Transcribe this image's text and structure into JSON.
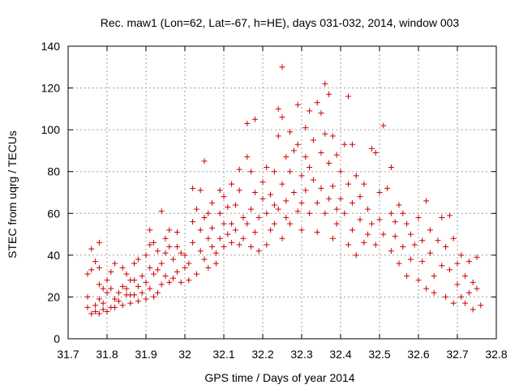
{
  "chart_data": {
    "type": "scatter",
    "title": "Rec. maw1 (Lon=62, Lat=-67, h=HE), days 031-032, 2014, window 003",
    "xlabel": "GPS time / Days of year 2014",
    "ylabel": "STEC from uqrg / TECUs",
    "xlim": [
      31.7,
      32.8
    ],
    "ylim": [
      0,
      140
    ],
    "x_ticks": [
      "31.7",
      "31.8",
      "31.9",
      "32",
      "32.1",
      "32.2",
      "32.3",
      "32.4",
      "32.5",
      "32.6",
      "32.7",
      "32.8"
    ],
    "y_ticks": [
      "0",
      "20",
      "40",
      "60",
      "80",
      "100",
      "120",
      "140"
    ],
    "grid": true,
    "marker": "plus",
    "color": "#cc0000",
    "series": [
      {
        "points": [
          [
            31.75,
            31
          ],
          [
            31.75,
            20
          ],
          [
            31.75,
            15
          ],
          [
            31.76,
            12
          ],
          [
            31.76,
            33
          ],
          [
            31.76,
            43
          ],
          [
            31.77,
            16
          ],
          [
            31.77,
            13
          ],
          [
            31.77,
            37
          ],
          [
            31.78,
            46
          ],
          [
            31.78,
            34
          ],
          [
            31.78,
            26
          ],
          [
            31.78,
            19
          ],
          [
            31.78,
            12
          ],
          [
            31.79,
            17
          ],
          [
            31.79,
            24
          ],
          [
            31.79,
            14
          ],
          [
            31.8,
            13
          ],
          [
            31.8,
            28
          ],
          [
            31.8,
            22
          ],
          [
            31.81,
            32
          ],
          [
            31.81,
            15
          ],
          [
            31.81,
            24
          ],
          [
            31.82,
            19
          ],
          [
            31.82,
            15
          ],
          [
            31.82,
            36
          ],
          [
            31.83,
            22
          ],
          [
            31.83,
            18
          ],
          [
            31.84,
            25
          ],
          [
            31.84,
            34
          ],
          [
            31.84,
            16
          ],
          [
            31.85,
            21
          ],
          [
            31.85,
            24
          ],
          [
            31.85,
            31
          ],
          [
            31.86,
            28
          ],
          [
            31.86,
            17
          ],
          [
            31.86,
            21
          ],
          [
            31.87,
            36
          ],
          [
            31.87,
            28
          ],
          [
            31.87,
            21
          ],
          [
            31.88,
            18
          ],
          [
            31.88,
            38
          ],
          [
            31.88,
            25
          ],
          [
            31.89,
            30
          ],
          [
            31.89,
            22
          ],
          [
            31.9,
            40
          ],
          [
            31.9,
            27
          ],
          [
            31.9,
            19
          ],
          [
            31.91,
            34
          ],
          [
            31.91,
            45
          ],
          [
            31.91,
            52
          ],
          [
            31.91,
            24
          ],
          [
            31.92,
            20
          ],
          [
            31.92,
            31
          ],
          [
            31.92,
            46
          ],
          [
            31.93,
            42
          ],
          [
            31.93,
            33
          ],
          [
            31.93,
            22
          ],
          [
            31.94,
            61
          ],
          [
            31.94,
            36
          ],
          [
            31.94,
            26
          ],
          [
            31.95,
            48
          ],
          [
            31.95,
            41
          ],
          [
            31.95,
            30
          ],
          [
            31.96,
            52
          ],
          [
            31.96,
            44
          ],
          [
            31.96,
            27
          ],
          [
            31.97,
            38
          ],
          [
            31.97,
            29
          ],
          [
            31.98,
            51
          ],
          [
            31.98,
            44
          ],
          [
            31.98,
            32
          ],
          [
            31.99,
            41
          ],
          [
            31.99,
            27
          ],
          [
            32.0,
            34
          ],
          [
            32.0,
            40
          ],
          [
            32.01,
            28
          ],
          [
            32.01,
            36
          ],
          [
            32.02,
            72
          ],
          [
            32.02,
            56
          ],
          [
            32.02,
            46
          ],
          [
            32.03,
            31
          ],
          [
            32.03,
            62
          ],
          [
            32.04,
            52
          ],
          [
            32.04,
            42
          ],
          [
            32.04,
            71
          ],
          [
            32.05,
            38
          ],
          [
            32.05,
            58
          ],
          [
            32.05,
            85
          ],
          [
            32.06,
            48
          ],
          [
            32.06,
            60
          ],
          [
            32.06,
            34
          ],
          [
            32.07,
            44
          ],
          [
            32.07,
            65
          ],
          [
            32.07,
            53
          ],
          [
            32.08,
            41
          ],
          [
            32.08,
            36
          ],
          [
            32.09,
            48
          ],
          [
            32.09,
            60
          ],
          [
            32.09,
            71
          ],
          [
            32.1,
            44
          ],
          [
            32.1,
            55
          ],
          [
            32.1,
            68
          ],
          [
            32.11,
            50
          ],
          [
            32.11,
            63
          ],
          [
            32.12,
            55
          ],
          [
            32.12,
            46
          ],
          [
            32.12,
            74
          ],
          [
            32.13,
            64
          ],
          [
            32.13,
            52
          ],
          [
            32.14,
            45
          ],
          [
            32.14,
            81
          ],
          [
            32.14,
            71
          ],
          [
            32.15,
            58
          ],
          [
            32.15,
            48
          ],
          [
            32.16,
            103
          ],
          [
            32.16,
            87
          ],
          [
            32.16,
            55
          ],
          [
            32.17,
            62
          ],
          [
            32.17,
            44
          ],
          [
            32.17,
            80
          ],
          [
            32.18,
            105
          ],
          [
            32.18,
            70
          ],
          [
            32.18,
            51
          ],
          [
            32.19,
            58
          ],
          [
            32.19,
            42
          ],
          [
            32.2,
            75
          ],
          [
            32.2,
            67
          ],
          [
            32.21,
            82
          ],
          [
            32.21,
            60
          ],
          [
            32.21,
            45
          ],
          [
            32.22,
            69
          ],
          [
            32.22,
            52
          ],
          [
            32.23,
            80
          ],
          [
            32.23,
            64
          ],
          [
            32.23,
            55
          ],
          [
            32.24,
            110
          ],
          [
            32.24,
            97
          ],
          [
            32.24,
            62
          ],
          [
            32.25,
            48
          ],
          [
            32.25,
            130
          ],
          [
            32.25,
            106
          ],
          [
            32.25,
            74
          ],
          [
            32.26,
            87
          ],
          [
            32.26,
            58
          ],
          [
            32.26,
            66
          ],
          [
            32.27,
            99
          ],
          [
            32.27,
            80
          ],
          [
            32.27,
            55
          ],
          [
            32.28,
            90
          ],
          [
            32.28,
            70
          ],
          [
            32.29,
            112
          ],
          [
            32.29,
            93
          ],
          [
            32.29,
            61
          ],
          [
            32.3,
            78
          ],
          [
            32.3,
            65
          ],
          [
            32.3,
            52
          ],
          [
            32.31,
            101
          ],
          [
            32.31,
            87
          ],
          [
            32.31,
            71
          ],
          [
            32.32,
            109
          ],
          [
            32.32,
            82
          ],
          [
            32.32,
            60
          ],
          [
            32.33,
            95
          ],
          [
            32.33,
            76
          ],
          [
            32.34,
            113
          ],
          [
            32.34,
            65
          ],
          [
            32.34,
            51
          ],
          [
            32.35,
            108
          ],
          [
            32.35,
            89
          ],
          [
            32.35,
            72
          ],
          [
            32.36,
            122
          ],
          [
            32.36,
            98
          ],
          [
            32.36,
            60
          ],
          [
            32.37,
            117
          ],
          [
            32.37,
            84
          ],
          [
            32.37,
            67
          ],
          [
            32.38,
            97
          ],
          [
            32.38,
            73
          ],
          [
            32.38,
            48
          ],
          [
            32.39,
            88
          ],
          [
            32.39,
            62
          ],
          [
            32.39,
            55
          ],
          [
            32.4,
            80
          ],
          [
            32.4,
            67
          ],
          [
            32.41,
            93
          ],
          [
            32.41,
            60
          ],
          [
            32.42,
            116
          ],
          [
            32.42,
            74
          ],
          [
            32.42,
            45
          ],
          [
            32.43,
            93
          ],
          [
            32.43,
            65
          ],
          [
            32.43,
            52
          ],
          [
            32.44,
            78
          ],
          [
            32.44,
            40
          ],
          [
            32.45,
            68
          ],
          [
            32.45,
            57
          ],
          [
            32.46,
            74
          ],
          [
            32.46,
            46
          ],
          [
            32.47,
            62
          ],
          [
            32.47,
            50
          ],
          [
            32.48,
            91
          ],
          [
            32.48,
            55
          ],
          [
            32.49,
            89
          ],
          [
            32.49,
            45
          ],
          [
            32.5,
            70
          ],
          [
            32.5,
            57
          ],
          [
            32.51,
            102
          ],
          [
            32.51,
            50
          ],
          [
            32.52,
            72
          ],
          [
            32.53,
            82
          ],
          [
            32.53,
            60
          ],
          [
            32.53,
            42
          ],
          [
            32.54,
            56
          ],
          [
            32.54,
            49
          ],
          [
            32.55,
            64
          ],
          [
            32.55,
            36
          ],
          [
            32.56,
            60
          ],
          [
            32.56,
            44
          ],
          [
            32.57,
            55
          ],
          [
            32.57,
            30
          ],
          [
            32.58,
            50
          ],
          [
            32.58,
            38
          ],
          [
            32.59,
            45
          ],
          [
            32.6,
            58
          ],
          [
            32.6,
            28
          ],
          [
            32.61,
            47
          ],
          [
            32.61,
            37
          ],
          [
            32.62,
            66
          ],
          [
            32.62,
            24
          ],
          [
            32.63,
            52
          ],
          [
            32.63,
            41
          ],
          [
            32.64,
            30
          ],
          [
            32.64,
            22
          ],
          [
            32.65,
            47
          ],
          [
            32.66,
            58
          ],
          [
            32.66,
            35
          ],
          [
            32.67,
            44
          ],
          [
            32.67,
            20
          ],
          [
            32.68,
            59
          ],
          [
            32.68,
            33
          ],
          [
            32.69,
            48
          ],
          [
            32.69,
            17
          ],
          [
            32.7,
            36
          ],
          [
            32.7,
            26
          ],
          [
            32.71,
            40
          ],
          [
            32.71,
            20
          ],
          [
            32.72,
            30
          ],
          [
            32.72,
            17
          ],
          [
            32.73,
            37
          ],
          [
            32.73,
            22
          ],
          [
            32.74,
            27
          ],
          [
            32.74,
            14
          ],
          [
            32.75,
            39
          ],
          [
            32.75,
            24
          ],
          [
            32.76,
            16
          ]
        ]
      }
    ]
  }
}
